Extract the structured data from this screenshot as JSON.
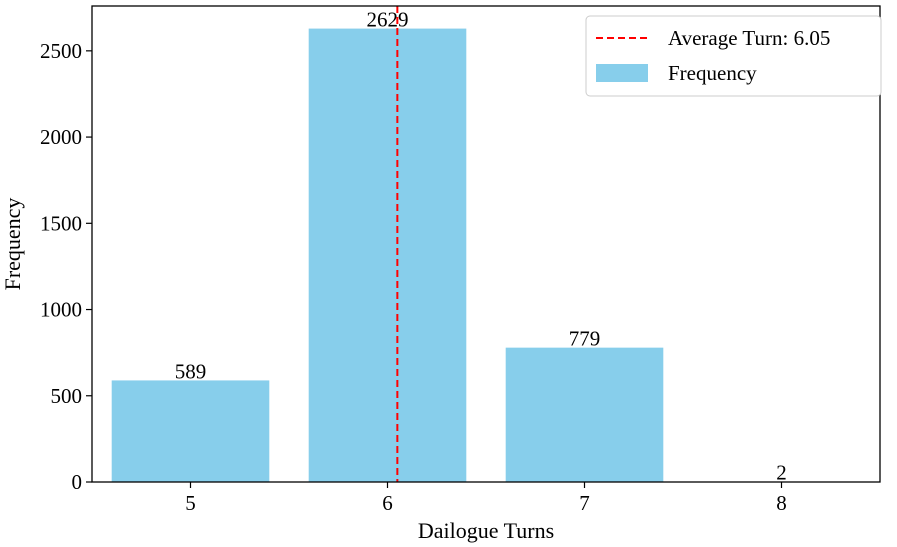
{
  "chart_data": {
    "type": "bar",
    "categories": [
      "5",
      "6",
      "7",
      "8"
    ],
    "x": [
      5,
      6,
      7,
      8
    ],
    "series": [
      {
        "name": "Frequency",
        "values": [
          589,
          2629,
          779,
          2
        ],
        "color": "#87CEEB"
      }
    ],
    "data_labels": [
      "589",
      "2629",
      "779",
      "2"
    ],
    "reference_line": {
      "name": "Average Turn: 6.05",
      "x": 6.05,
      "color": "#ff0000",
      "style": "dashed"
    },
    "xlabel": "Dailogue Turns",
    "ylabel": "Frequency",
    "xlim": [
      4.5,
      8.5
    ],
    "ylim": [
      0,
      2760
    ],
    "y_ticks": [
      0,
      500,
      1000,
      1500,
      2000,
      2500
    ],
    "x_ticks": [
      5,
      6,
      7,
      8
    ],
    "grid": false,
    "legend_position": "top-right",
    "legend": [
      {
        "label": "Average Turn: 6.05",
        "kind": "line"
      },
      {
        "label": "Frequency",
        "kind": "patch"
      }
    ]
  }
}
